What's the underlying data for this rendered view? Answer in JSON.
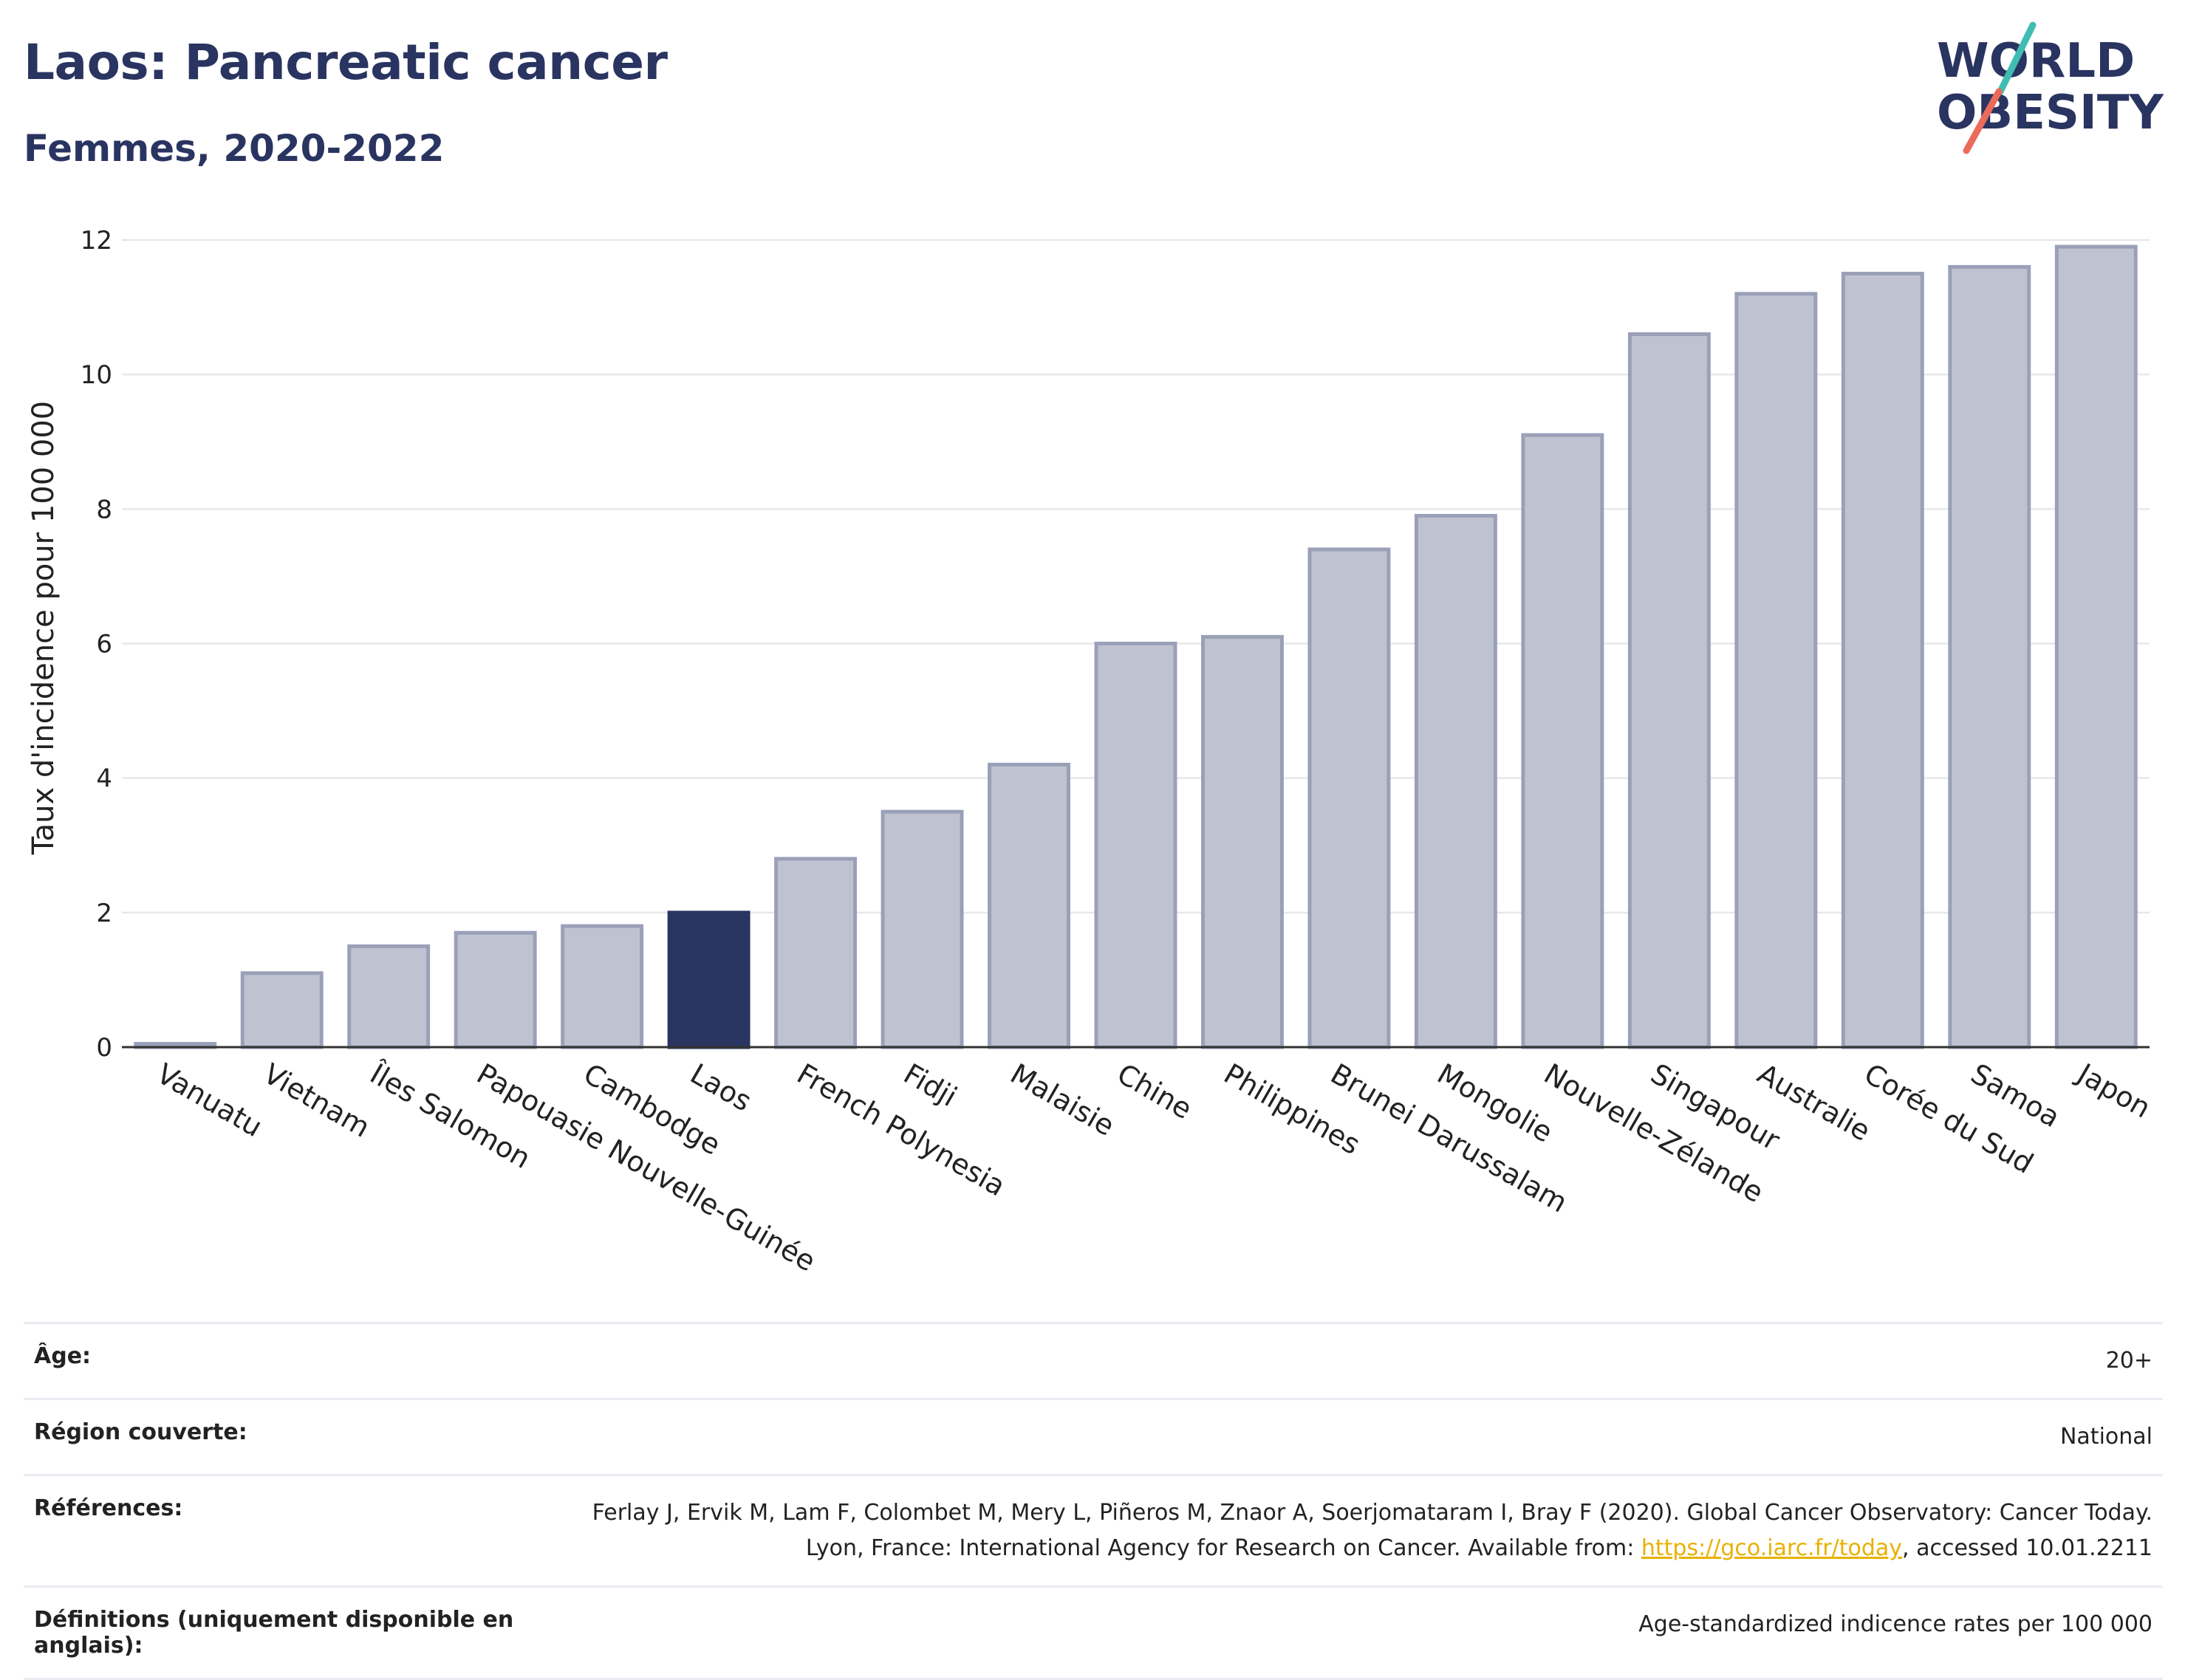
{
  "header": {
    "title": "Laos: Pancreatic cancer",
    "subtitle": "Femmes, 2020-2022"
  },
  "logo": {
    "line1": "WORLD",
    "line2": "OBESITY",
    "slash_colors": [
      "#3fbdb3",
      "#ea6b5a"
    ],
    "text_color": "#2a3461"
  },
  "chart_data": {
    "type": "bar",
    "categories": [
      "Vanuatu",
      "Vietnam",
      "Îles Salomon",
      "Papouasie Nouvelle-Guinée",
      "Cambodge",
      "Laos",
      "French Polynesia",
      "Fidji",
      "Malaisie",
      "Chine",
      "Philippines",
      "Brunei Darussalam",
      "Mongolie",
      "Nouvelle-Zélande",
      "Singapour",
      "Australie",
      "Corée du Sud",
      "Samoa",
      "Japon"
    ],
    "values": [
      0.05,
      1.1,
      1.5,
      1.7,
      1.8,
      2.0,
      2.8,
      3.5,
      4.2,
      6.0,
      6.1,
      7.4,
      7.9,
      9.1,
      10.6,
      11.2,
      11.5,
      11.6,
      11.9
    ],
    "highlight": "Laos",
    "xlabel": "",
    "ylabel": "Taux d'incidence pour 100 000",
    "ylim": [
      0,
      12
    ],
    "yticks": [
      0,
      2,
      4,
      6,
      8,
      10,
      12
    ],
    "grid": true,
    "colors": {
      "bar": "#bfc3d1",
      "bar_edge": "#9aa0b8",
      "highlight": "#2a3461",
      "grid": "#e6e8ee",
      "axis": "#333333"
    }
  },
  "meta": [
    {
      "key": "Âge:",
      "value": "20+"
    },
    {
      "key": "Région couverte:",
      "value": "National"
    },
    {
      "key": "Références:",
      "value_prefix": "Ferlay J, Ervik M, Lam F, Colombet M, Mery L, Piñeros M, Znaor A, Soerjomataram I, Bray F (2020). Global Cancer Observatory: Cancer Today. Lyon, France: International Agency for Research on Cancer. Available from: ",
      "link": "https://gco.iarc.fr/today",
      "value_suffix": ", accessed 10.01.2211"
    },
    {
      "key": "Définitions (uniquement disponible en anglais):",
      "value": "Age-standardized indicence rates per 100 000"
    }
  ]
}
